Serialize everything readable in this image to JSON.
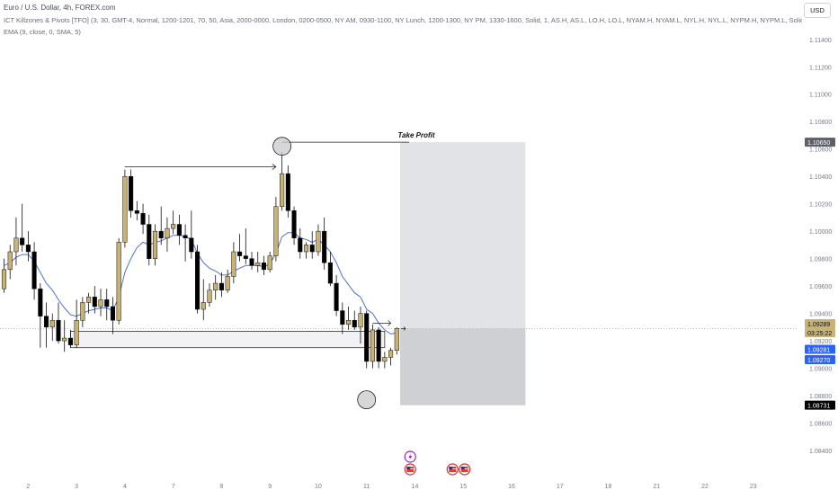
{
  "header": {
    "symbol": "Euro / U.S. Dollar, 4h, FOREX.com",
    "indicator_1": "ICT Killzones & Pivots [TFO] (3, 30, GMT-4, Normal, 1200-1201, 70, 50, Asia, 2000-0000, London, 0200-0500, NY AM, 0930-1100, NY Lunch, 1200-1300, NY PM, 1330-1600, Solid, 1, AS.H, AS.L, LO.H, LO.L, NYAM.H, NYAM.L, NYL.H, NYL.L, NYPM.H, NYPM.L, Solid, 1, D...",
    "indicator_2": "EMA (9, close, 0, SMA, 5)",
    "currency": "USD"
  },
  "colors": {
    "bull": "#c8b374",
    "bear": "#000000",
    "ema": "#4f6fd8",
    "profit_zone": "#e2e3e6",
    "stop_zone": "#cfd0d3",
    "current_price_badge": "#c8b374",
    "blue_badge": "#2962ff"
  },
  "chart_data": {
    "type": "candlestick",
    "y_axis": {
      "min": 1.082,
      "max": 1.116,
      "ticks": [
        "1.11400",
        "1.11200",
        "1.11000",
        "1.10800",
        "1.10600",
        "1.10400",
        "1.10200",
        "1.10000",
        "1.09800",
        "1.09600",
        "1.09400",
        "1.09200",
        "1.09000",
        "1.08800",
        "1.08600",
        "1.08400"
      ],
      "tick_values": [
        1.114,
        1.112,
        1.11,
        1.108,
        1.106,
        1.104,
        1.102,
        1.1,
        1.098,
        1.096,
        1.094,
        1.092,
        1.09,
        1.088,
        1.086,
        1.084
      ]
    },
    "x_axis": {
      "labels": [
        "2",
        "3",
        "4",
        "7",
        "8",
        "9",
        "10",
        "11",
        "14",
        "15",
        "16",
        "17",
        "18",
        "21",
        "22",
        "23"
      ],
      "label_bar_index": [
        4,
        12,
        20,
        28,
        36,
        44,
        52,
        60,
        68,
        76,
        84,
        92,
        100,
        108,
        116,
        124
      ]
    },
    "candles": [
      {
        "o": 1.0958,
        "h": 1.098,
        "l": 1.0955,
        "c": 1.0972
      },
      {
        "o": 1.0972,
        "h": 1.099,
        "l": 1.0965,
        "c": 1.0985
      },
      {
        "o": 1.0985,
        "h": 1.101,
        "l": 1.0975,
        "c": 1.0995
      },
      {
        "o": 1.0995,
        "h": 1.102,
        "l": 1.0985,
        "c": 1.099
      },
      {
        "o": 1.099,
        "h": 1.1,
        "l": 1.0978,
        "c": 1.0985
      },
      {
        "o": 1.0985,
        "h": 1.0992,
        "l": 1.095,
        "c": 1.0958
      },
      {
        "o": 1.0958,
        "h": 1.0962,
        "l": 1.0915,
        "c": 1.0938
      },
      {
        "o": 1.0938,
        "h": 1.0948,
        "l": 1.0915,
        "c": 1.093
      },
      {
        "o": 1.093,
        "h": 1.094,
        "l": 1.092,
        "c": 1.0935
      },
      {
        "o": 1.0935,
        "h": 1.0948,
        "l": 1.0918,
        "c": 1.092
      },
      {
        "o": 1.092,
        "h": 1.0935,
        "l": 1.0912,
        "c": 1.0922
      },
      {
        "o": 1.0922,
        "h": 1.0928,
        "l": 1.0915,
        "c": 1.0917
      },
      {
        "o": 1.0917,
        "h": 1.095,
        "l": 1.0915,
        "c": 1.0935
      },
      {
        "o": 1.0935,
        "h": 1.0952,
        "l": 1.093,
        "c": 1.0948
      },
      {
        "o": 1.0948,
        "h": 1.0955,
        "l": 1.094,
        "c": 1.0952
      },
      {
        "o": 1.0952,
        "h": 1.096,
        "l": 1.094,
        "c": 1.0945
      },
      {
        "o": 1.0945,
        "h": 1.0958,
        "l": 1.0938,
        "c": 1.095
      },
      {
        "o": 1.095,
        "h": 1.0958,
        "l": 1.0935,
        "c": 1.0945
      },
      {
        "o": 1.0945,
        "h": 1.0952,
        "l": 1.0925,
        "c": 1.0935
      },
      {
        "o": 1.0935,
        "h": 1.0995,
        "l": 1.0932,
        "c": 1.0992
      },
      {
        "o": 1.0992,
        "h": 1.1045,
        "l": 1.0988,
        "c": 1.104
      },
      {
        "o": 1.104,
        "h": 1.1045,
        "l": 1.101,
        "c": 1.1015
      },
      {
        "o": 1.1015,
        "h": 1.1022,
        "l": 1.1008,
        "c": 1.1013
      },
      {
        "o": 1.1013,
        "h": 1.102,
        "l": 1.0998,
        "c": 1.1005
      },
      {
        "o": 1.1005,
        "h": 1.1012,
        "l": 1.0975,
        "c": 1.098
      },
      {
        "o": 1.098,
        "h": 1.1005,
        "l": 1.0975,
        "c": 1.1
      },
      {
        "o": 1.1,
        "h": 1.1018,
        "l": 1.099,
        "c": 1.0995
      },
      {
        "o": 1.0995,
        "h": 1.101,
        "l": 1.0985,
        "c": 1.1002
      },
      {
        "o": 1.1002,
        "h": 1.1015,
        "l": 1.0998,
        "c": 1.1005
      },
      {
        "o": 1.1005,
        "h": 1.1012,
        "l": 1.099,
        "c": 1.0997
      },
      {
        "o": 1.0997,
        "h": 1.1005,
        "l": 1.0978,
        "c": 1.0995
      },
      {
        "o": 1.0995,
        "h": 1.1015,
        "l": 1.098,
        "c": 1.0985
      },
      {
        "o": 1.0985,
        "h": 1.099,
        "l": 1.094,
        "c": 1.0943
      },
      {
        "o": 1.0943,
        "h": 1.0965,
        "l": 1.0935,
        "c": 1.0948
      },
      {
        "o": 1.0948,
        "h": 1.0962,
        "l": 1.0945,
        "c": 1.0957
      },
      {
        "o": 1.0957,
        "h": 1.0968,
        "l": 1.095,
        "c": 1.0962
      },
      {
        "o": 1.0962,
        "h": 1.097,
        "l": 1.0952,
        "c": 1.0957
      },
      {
        "o": 1.0957,
        "h": 1.0972,
        "l": 1.0955,
        "c": 1.0967
      },
      {
        "o": 1.0967,
        "h": 1.0992,
        "l": 1.0962,
        "c": 1.0985
      },
      {
        "o": 1.0985,
        "h": 1.0998,
        "l": 1.0978,
        "c": 1.0982
      },
      {
        "o": 1.0982,
        "h": 1.1002,
        "l": 1.0976,
        "c": 1.098
      },
      {
        "o": 1.098,
        "h": 1.0985,
        "l": 1.0972,
        "c": 1.0975
      },
      {
        "o": 1.0975,
        "h": 1.0985,
        "l": 1.097,
        "c": 1.0977
      },
      {
        "o": 1.0977,
        "h": 1.0982,
        "l": 1.0968,
        "c": 1.0972
      },
      {
        "o": 1.0972,
        "h": 1.0985,
        "l": 1.097,
        "c": 1.0982
      },
      {
        "o": 1.0982,
        "h": 1.1025,
        "l": 1.0978,
        "c": 1.1018
      },
      {
        "o": 1.1018,
        "h": 1.1058,
        "l": 1.1015,
        "c": 1.1042
      },
      {
        "o": 1.1042,
        "h": 1.1048,
        "l": 1.101,
        "c": 1.1015
      },
      {
        "o": 1.1015,
        "h": 1.1018,
        "l": 1.099,
        "c": 1.0995
      },
      {
        "o": 1.0995,
        "h": 1.1002,
        "l": 1.098,
        "c": 1.0985
      },
      {
        "o": 1.0985,
        "h": 1.0992,
        "l": 1.098,
        "c": 1.099
      },
      {
        "o": 1.099,
        "h": 1.1,
        "l": 1.098,
        "c": 1.0985
      },
      {
        "o": 1.0985,
        "h": 1.1005,
        "l": 1.0982,
        "c": 1.1
      },
      {
        "o": 1.1,
        "h": 1.101,
        "l": 1.0972,
        "c": 1.0977
      },
      {
        "o": 1.0977,
        "h": 1.0985,
        "l": 1.096,
        "c": 1.0962
      },
      {
        "o": 1.0962,
        "h": 1.0968,
        "l": 1.0938,
        "c": 1.0942
      },
      {
        "o": 1.0942,
        "h": 1.0948,
        "l": 1.0925,
        "c": 1.0932
      },
      {
        "o": 1.0932,
        "h": 1.0945,
        "l": 1.0928,
        "c": 1.0935
      },
      {
        "o": 1.0935,
        "h": 1.0942,
        "l": 1.0928,
        "c": 1.093
      },
      {
        "o": 1.093,
        "h": 1.0945,
        "l": 1.0918,
        "c": 1.094
      },
      {
        "o": 1.094,
        "h": 1.0942,
        "l": 1.09,
        "c": 1.0905
      },
      {
        "o": 1.0905,
        "h": 1.0932,
        "l": 1.09,
        "c": 1.0928
      },
      {
        "o": 1.0928,
        "h": 1.093,
        "l": 1.09,
        "c": 1.0905
      },
      {
        "o": 1.0905,
        "h": 1.0912,
        "l": 1.09,
        "c": 1.0908
      },
      {
        "o": 1.0908,
        "h": 1.0915,
        "l": 1.0902,
        "c": 1.0913
      },
      {
        "o": 1.0913,
        "h": 1.093,
        "l": 1.091,
        "c": 1.0929
      }
    ],
    "candle_slot": [
      0,
      1,
      2,
      3,
      4,
      5,
      6,
      7,
      8,
      9,
      10,
      11,
      12,
      13,
      14,
      15,
      16,
      17,
      18,
      19,
      20,
      21,
      22,
      23,
      24,
      25,
      26,
      27,
      28,
      29,
      30,
      31,
      32,
      33,
      34,
      35,
      36,
      37,
      38,
      39,
      40,
      41,
      42,
      43,
      44,
      45,
      46,
      47,
      48,
      49,
      50,
      51,
      52,
      53,
      54,
      55,
      56,
      57,
      58,
      59,
      60,
      61,
      62,
      63,
      64,
      65
    ],
    "ema_values": [
      1.0975,
      1.0977,
      1.0981,
      1.0983,
      1.0983,
      1.0978,
      1.097,
      1.0962,
      1.0957,
      1.095,
      1.0944,
      1.0939,
      1.0938,
      1.094,
      1.0942,
      1.0943,
      1.0944,
      1.0944,
      1.0942,
      1.0952,
      1.097,
      1.098,
      1.0988,
      1.0992,
      1.099,
      1.0992,
      1.0993,
      1.0995,
      1.0997,
      1.0997,
      1.0996,
      1.0994,
      1.0984,
      1.0977,
      1.0973,
      1.0971,
      1.0968,
      1.0968,
      1.0971,
      1.0973,
      1.0975,
      1.0975,
      1.0975,
      1.0974,
      1.0976,
      1.0984,
      1.0996,
      1.0999,
      1.0999,
      1.0995,
      1.0994,
      1.0992,
      1.0994,
      1.099,
      1.0985,
      1.0977,
      1.0967,
      1.0961,
      1.0955,
      1.0952,
      1.0943,
      1.094,
      1.0933,
      1.0928,
      1.0925,
      1.0926
    ],
    "price_badges": [
      {
        "label": "1.10650",
        "value": 1.1065,
        "style": "dark-outline"
      },
      {
        "label": "1.09289",
        "value": 1.09289,
        "style": "gold"
      },
      {
        "label": "03:25:22",
        "value": 1.09289,
        "style": "gold-sub"
      },
      {
        "label": "1.09281",
        "value": 1.09281,
        "style": "blue"
      },
      {
        "label": "1.09270",
        "value": 1.0927,
        "style": "blue"
      },
      {
        "label": "1.08731",
        "value": 1.08731,
        "style": "black"
      }
    ],
    "annotations": {
      "take_profit_label": "Take Profit",
      "take_profit_level": 1.1065,
      "entry_level": 1.0929,
      "stop_level": 1.0873,
      "demand_zone": {
        "top": 1.0927,
        "bottom": 1.0915,
        "from_bar": 11,
        "to_bar": 63
      },
      "swing_high_arrow": {
        "level": 1.1047,
        "from_bar": 20,
        "to_bar": 45
      },
      "circle_high_bar": 46,
      "circle_high_level": 1.1062,
      "circle_low_bar": 60,
      "circle_low_level": 1.0877,
      "position_from_bar": 66,
      "position_to_bar": 86
    },
    "events": [
      {
        "bar": 67,
        "icon": "lightning"
      },
      {
        "bar": 67,
        "icon": "us-flag"
      },
      {
        "bar": 74,
        "icon": "us-flag"
      },
      {
        "bar": 76,
        "icon": "us-flag"
      }
    ]
  }
}
